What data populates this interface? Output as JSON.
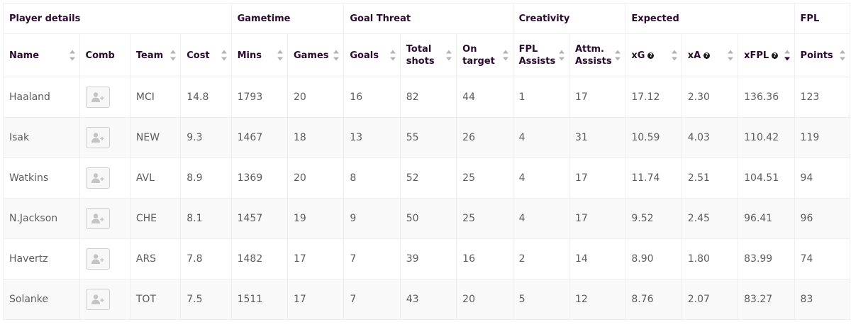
{
  "groups": [
    {
      "label": "Player details",
      "span": 4
    },
    {
      "label": "Gametime",
      "span": 2
    },
    {
      "label": "Goal Threat",
      "span": 3
    },
    {
      "label": "Creativity",
      "span": 2
    },
    {
      "label": "Expected",
      "span": 3
    },
    {
      "label": "FPL",
      "span": 1
    }
  ],
  "columns": [
    {
      "key": "name",
      "label": "Name",
      "help": false,
      "sortable": true,
      "sort_active": false
    },
    {
      "key": "comb",
      "label": "Comb",
      "help": false,
      "sortable": false,
      "sort_active": false
    },
    {
      "key": "team",
      "label": "Team",
      "help": false,
      "sortable": true,
      "sort_active": false
    },
    {
      "key": "cost",
      "label": "Cost",
      "help": false,
      "sortable": true,
      "sort_active": false
    },
    {
      "key": "mins",
      "label": "Mins",
      "help": false,
      "sortable": true,
      "sort_active": false
    },
    {
      "key": "games",
      "label": "Games",
      "help": false,
      "sortable": true,
      "sort_active": false
    },
    {
      "key": "goals",
      "label": "Goals",
      "help": false,
      "sortable": true,
      "sort_active": false
    },
    {
      "key": "shots",
      "label": "Total shots",
      "help": false,
      "sortable": true,
      "sort_active": false
    },
    {
      "key": "on_target",
      "label": "On target",
      "help": false,
      "sortable": true,
      "sort_active": false
    },
    {
      "key": "fpl_assists",
      "label": "FPL Assists",
      "help": false,
      "sortable": true,
      "sort_active": false
    },
    {
      "key": "attm_assists",
      "label": "Attm. Assists",
      "help": false,
      "sortable": true,
      "sort_active": false
    },
    {
      "key": "xg",
      "label": "xG",
      "help": true,
      "sortable": true,
      "sort_active": false
    },
    {
      "key": "xa",
      "label": "xA",
      "help": true,
      "sortable": true,
      "sort_active": false
    },
    {
      "key": "xfpl",
      "label": "xFPL",
      "help": true,
      "sortable": true,
      "sort_active": true
    },
    {
      "key": "points",
      "label": "Points",
      "help": false,
      "sortable": true,
      "sort_active": false
    }
  ],
  "rows": [
    {
      "name": "Haaland",
      "team": "MCI",
      "cost": "14.8",
      "mins": "1793",
      "games": "20",
      "goals": "16",
      "shots": "82",
      "on_target": "44",
      "fpl_assists": "1",
      "attm_assists": "17",
      "xg": "17.12",
      "xa": "2.30",
      "xfpl": "136.36",
      "points": "123"
    },
    {
      "name": "Isak",
      "team": "NEW",
      "cost": "9.3",
      "mins": "1467",
      "games": "18",
      "goals": "13",
      "shots": "55",
      "on_target": "26",
      "fpl_assists": "4",
      "attm_assists": "31",
      "xg": "10.59",
      "xa": "4.03",
      "xfpl": "110.42",
      "points": "119"
    },
    {
      "name": "Watkins",
      "team": "AVL",
      "cost": "8.9",
      "mins": "1369",
      "games": "20",
      "goals": "8",
      "shots": "52",
      "on_target": "25",
      "fpl_assists": "4",
      "attm_assists": "17",
      "xg": "11.74",
      "xa": "2.51",
      "xfpl": "104.51",
      "points": "94"
    },
    {
      "name": "N.Jackson",
      "team": "CHE",
      "cost": "8.1",
      "mins": "1457",
      "games": "19",
      "goals": "9",
      "shots": "50",
      "on_target": "25",
      "fpl_assists": "4",
      "attm_assists": "17",
      "xg": "9.52",
      "xa": "2.45",
      "xfpl": "96.41",
      "points": "96"
    },
    {
      "name": "Havertz",
      "team": "ARS",
      "cost": "7.8",
      "mins": "1482",
      "games": "17",
      "goals": "7",
      "shots": "39",
      "on_target": "16",
      "fpl_assists": "2",
      "attm_assists": "14",
      "xg": "8.90",
      "xa": "1.80",
      "xfpl": "83.99",
      "points": "74"
    },
    {
      "name": "Solanke",
      "team": "TOT",
      "cost": "7.5",
      "mins": "1511",
      "games": "17",
      "goals": "7",
      "shots": "43",
      "on_target": "20",
      "fpl_assists": "5",
      "attm_assists": "12",
      "xg": "8.76",
      "xa": "2.07",
      "xfpl": "83.27",
      "points": "83"
    }
  ],
  "icons": {
    "help": "question-circle-icon",
    "comb": "add-user-icon",
    "sort": "sort-arrows-icon"
  },
  "colors": {
    "header_text": "#2b0a30",
    "cell_text": "#5d5d5d",
    "border": "#eeeeee",
    "sort_active": "#37003c",
    "sort_inactive": "#b3b3b3"
  }
}
